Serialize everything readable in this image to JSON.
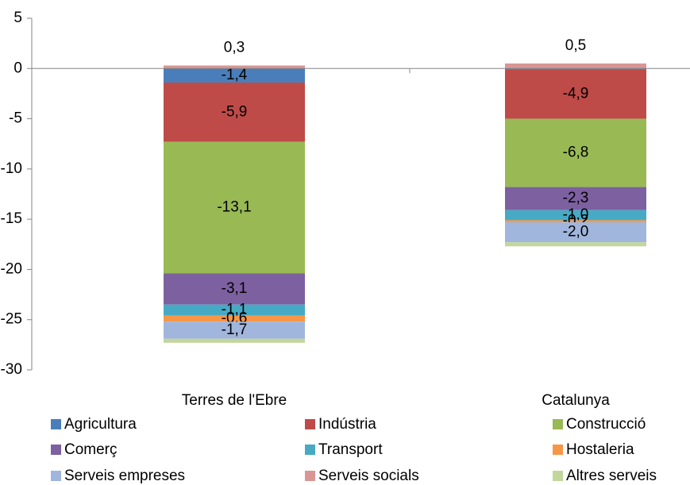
{
  "chart_data": {
    "type": "stacked-bar",
    "categories": [
      "Terres de l'Ebre",
      "Catalunya"
    ],
    "series": [
      {
        "name": "Agricultura",
        "color": "#4a7ebb",
        "values": [
          -1.4,
          -0.1
        ],
        "value_labels": [
          "-1,4",
          null
        ]
      },
      {
        "name": "Indústria",
        "color": "#be4b48",
        "values": [
          -5.9,
          -4.9
        ],
        "value_labels": [
          "-5,9",
          "-4,9"
        ]
      },
      {
        "name": "Construcció",
        "color": "#98b954",
        "values": [
          -13.1,
          -6.8
        ],
        "value_labels": [
          "-13,1",
          "-6,8"
        ]
      },
      {
        "name": "Comerç",
        "color": "#7d60a0",
        "values": [
          -3.1,
          -2.3
        ],
        "value_labels": [
          "-3,1",
          "-2,3"
        ]
      },
      {
        "name": "Transport",
        "color": "#46aac5",
        "values": [
          -1.1,
          -1.0
        ],
        "value_labels": [
          "-1,1",
          "-1,0"
        ]
      },
      {
        "name": "Hostaleria",
        "color": "#f79646",
        "values": [
          -0.6,
          -0.2
        ],
        "value_labels": [
          "-0,6",
          "-0,2"
        ]
      },
      {
        "name": "Serveis empreses",
        "color": "#a1b6dc",
        "values": [
          -1.7,
          -2.0
        ],
        "value_labels": [
          "-1,7",
          "-2,0"
        ]
      },
      {
        "name": "Serveis socials",
        "color": "#d99694",
        "values": [
          0.3,
          0.5
        ],
        "value_labels": [
          "0,3",
          "0,5"
        ]
      },
      {
        "name": "Altres serveis",
        "color": "#c3d69b",
        "values": [
          -0.4,
          -0.4
        ],
        "value_labels": [
          null,
          null
        ]
      }
    ],
    "ylim": [
      -30,
      5
    ],
    "yticks": [
      -30,
      -25,
      -20,
      -15,
      -10,
      -5,
      0,
      5
    ]
  }
}
